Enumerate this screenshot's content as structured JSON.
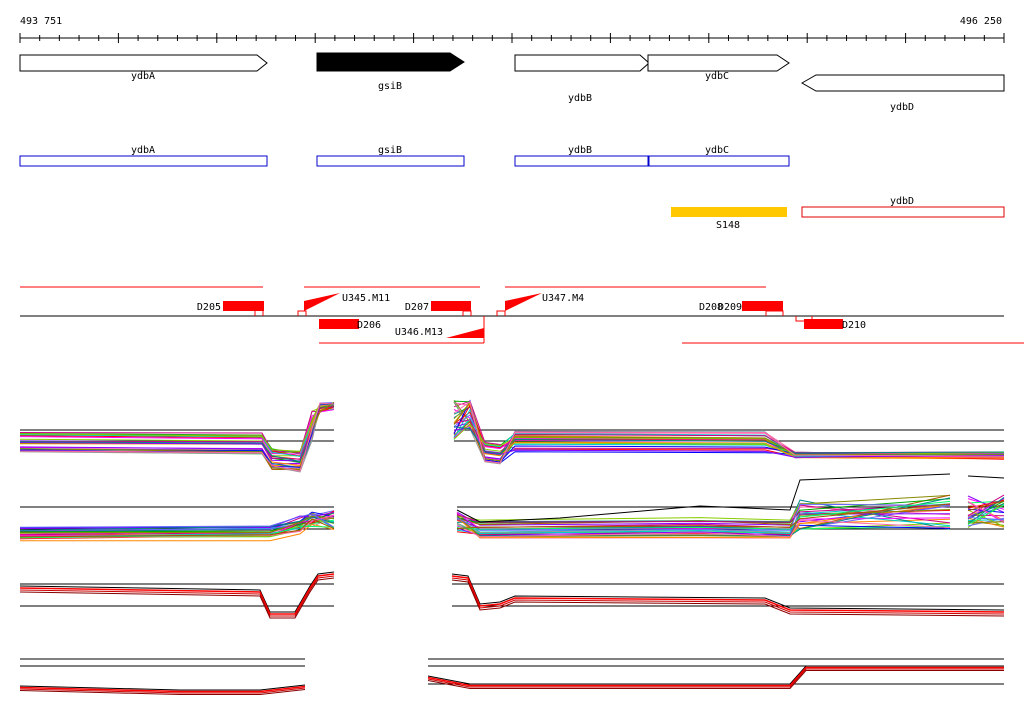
{
  "coords": {
    "start": "493 751",
    "end": "496 250"
  },
  "genes": [
    {
      "name": "ydbA",
      "strand": "+",
      "highlighted": false
    },
    {
      "name": "gsiB",
      "strand": "+",
      "highlighted": true
    },
    {
      "name": "ydbB",
      "strand": "+",
      "highlighted": false
    },
    {
      "name": "ydbC",
      "strand": "+",
      "highlighted": false
    },
    {
      "name": "ydbD",
      "strand": "-",
      "highlighted": false
    }
  ],
  "annotation_boxes": [
    "ydbA",
    "gsiB",
    "ydbB",
    "ydbC",
    "ydbD"
  ],
  "segment_label": "S148",
  "features": {
    "upstream": [
      "U345.M11",
      "U346.M13",
      "U347.M4"
    ],
    "downstream": [
      "D205",
      "D206",
      "D207",
      "D208",
      "D209",
      "D210"
    ]
  },
  "colors": {
    "gene_outline": "#000000",
    "gene_fill_highlight": "#000000",
    "annotation_blue": "#0000cc",
    "annotation_red": "#e00000",
    "segment_yellow": "#ffc800",
    "feature_red": "#ff0000"
  }
}
